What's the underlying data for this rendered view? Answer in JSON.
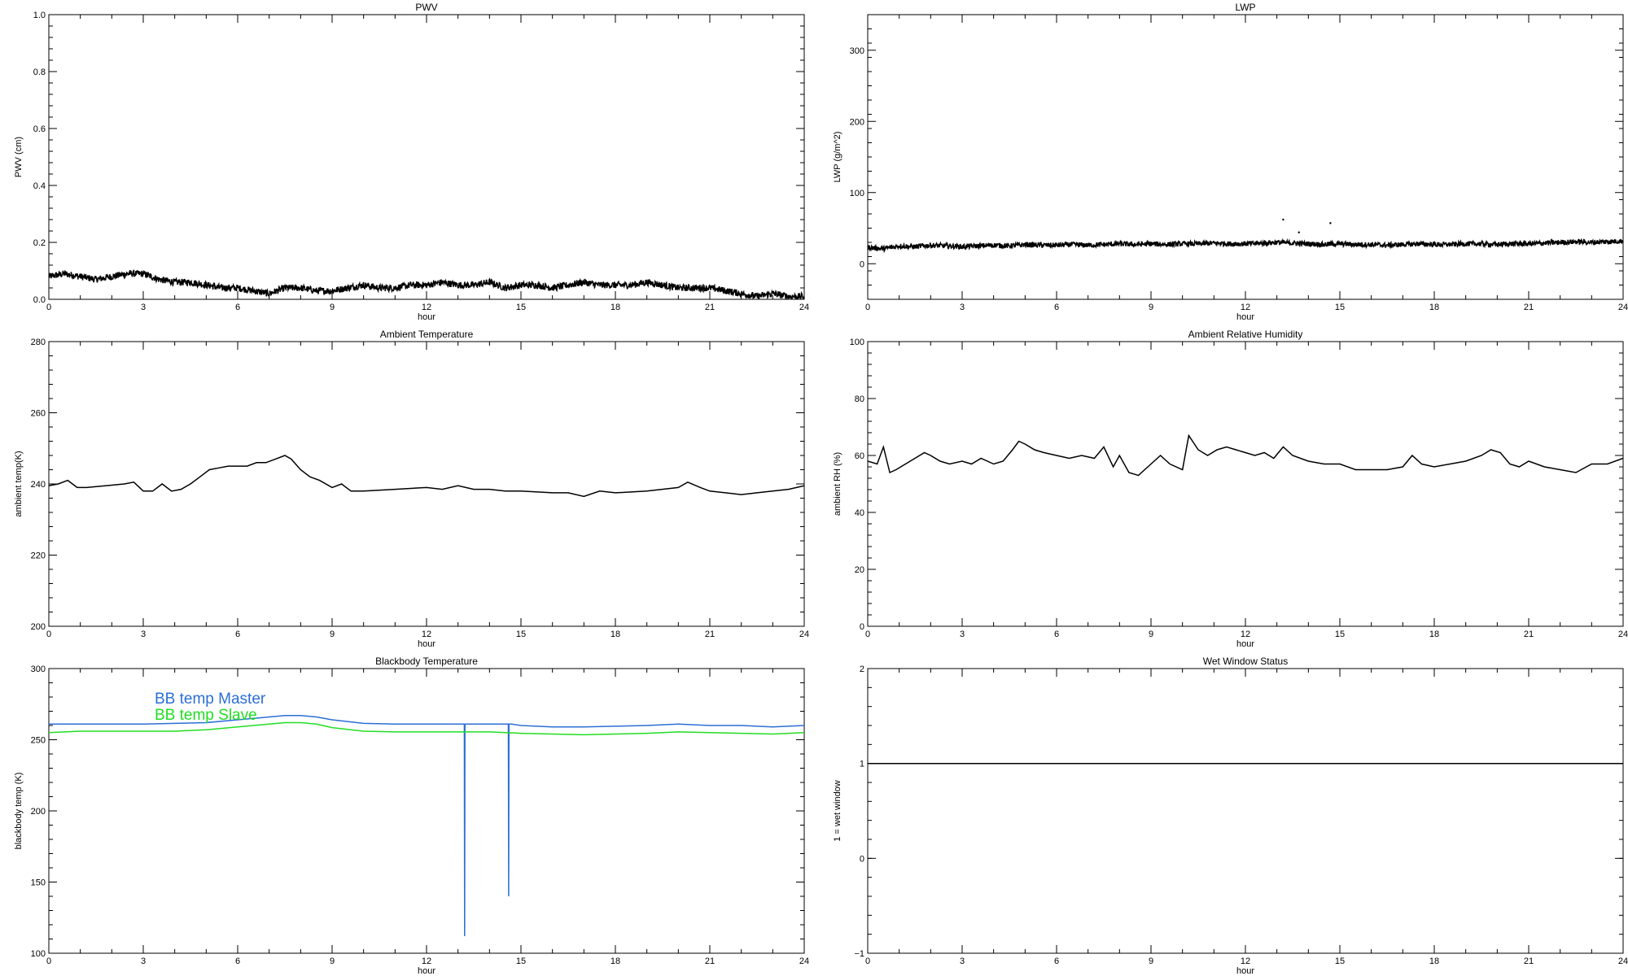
{
  "chart_data": [
    {
      "id": "pwv",
      "type": "line",
      "title": "PWV",
      "xlabel": "hour",
      "ylabel": "PWV (cm)",
      "xlim": [
        0,
        24
      ],
      "ylim": [
        0.0,
        1.0
      ],
      "x_ticks": [
        "0",
        "3",
        "6",
        "9",
        "12",
        "15",
        "18",
        "21",
        "24"
      ],
      "y_ticks": [
        {
          "value": 0.0,
          "label": "0.0"
        },
        {
          "value": 0.2,
          "label": "0.2"
        },
        {
          "value": 0.4,
          "label": "0.4"
        },
        {
          "value": 0.6,
          "label": "0.6"
        },
        {
          "value": 0.8,
          "label": "0.8"
        },
        {
          "value": 1.0,
          "label": "1.0"
        }
      ],
      "series": [
        {
          "color": "#000000",
          "style": "noisy",
          "x": [
            0,
            0.5,
            1,
            1.5,
            2,
            2.5,
            3,
            3.5,
            4,
            4.5,
            5,
            5.5,
            6,
            6.5,
            7,
            7.5,
            8,
            8.5,
            9,
            9.5,
            10,
            10.5,
            11,
            11.5,
            12,
            12.5,
            13,
            13.5,
            14,
            14.5,
            15,
            15.5,
            16,
            16.5,
            17,
            17.5,
            18,
            18.5,
            19,
            19.5,
            20,
            20.5,
            21,
            21.5,
            22,
            22.5,
            23,
            23.5,
            24
          ],
          "y": [
            0.08,
            0.09,
            0.08,
            0.07,
            0.08,
            0.09,
            0.09,
            0.07,
            0.06,
            0.06,
            0.05,
            0.04,
            0.04,
            0.03,
            0.02,
            0.04,
            0.04,
            0.03,
            0.03,
            0.04,
            0.05,
            0.04,
            0.04,
            0.05,
            0.05,
            0.06,
            0.05,
            0.05,
            0.06,
            0.04,
            0.05,
            0.05,
            0.04,
            0.05,
            0.06,
            0.05,
            0.05,
            0.05,
            0.06,
            0.05,
            0.04,
            0.04,
            0.04,
            0.03,
            0.02,
            0.01,
            0.02,
            0.01,
            0.01
          ]
        }
      ]
    },
    {
      "id": "lwp",
      "type": "line",
      "title": "LWP",
      "xlabel": "hour",
      "ylabel": "LWP (g/m^2)",
      "xlim": [
        0,
        24
      ],
      "ylim": [
        -50,
        350
      ],
      "x_ticks": [
        "0",
        "3",
        "6",
        "9",
        "12",
        "15",
        "18",
        "21",
        "24"
      ],
      "y_ticks": [
        {
          "value": 0,
          "label": "0"
        },
        {
          "value": 100,
          "label": "100"
        },
        {
          "value": 200,
          "label": "200"
        },
        {
          "value": 300,
          "label": "300"
        }
      ],
      "series": [
        {
          "color": "#000000",
          "style": "noisy",
          "x": [
            0,
            0.5,
            1,
            1.5,
            2,
            2.5,
            3,
            3.5,
            4,
            4.5,
            5,
            5.5,
            6,
            6.5,
            7,
            7.5,
            8,
            8.5,
            9,
            9.5,
            10,
            10.5,
            11,
            11.5,
            12,
            12.5,
            13,
            13.5,
            14,
            14.5,
            15,
            15.5,
            16,
            16.5,
            17,
            17.5,
            18,
            18.5,
            19,
            19.5,
            20,
            20.5,
            21,
            21.5,
            22,
            22.5,
            23,
            23.5,
            24
          ],
          "y": [
            23,
            21,
            25,
            24,
            26,
            25,
            24,
            25,
            26,
            25,
            27,
            26,
            26,
            27,
            26,
            27,
            28,
            27,
            28,
            27,
            28,
            28,
            29,
            28,
            28,
            29,
            30,
            29,
            28,
            27,
            28,
            27,
            27,
            26,
            27,
            28,
            27,
            27,
            28,
            28,
            27,
            28,
            28,
            29,
            30,
            31,
            30,
            31,
            32
          ]
        }
      ],
      "outliers": [
        {
          "x": 13.2,
          "y": 62
        },
        {
          "x": 13.7,
          "y": 44
        },
        {
          "x": 14.7,
          "y": 57
        }
      ]
    },
    {
      "id": "ambient_temp",
      "type": "line",
      "title": "Ambient Temperature",
      "xlabel": "hour",
      "ylabel": "ambient temp(K)",
      "xlim": [
        0,
        24
      ],
      "ylim": [
        200,
        280
      ],
      "x_ticks": [
        "0",
        "3",
        "6",
        "9",
        "12",
        "15",
        "18",
        "21",
        "24"
      ],
      "y_ticks": [
        {
          "value": 200,
          "label": "200"
        },
        {
          "value": 220,
          "label": "220"
        },
        {
          "value": 240,
          "label": "240"
        },
        {
          "value": 260,
          "label": "260"
        },
        {
          "value": 280,
          "label": "280"
        }
      ],
      "series": [
        {
          "color": "#000000",
          "style": "solid",
          "x": [
            0,
            0.3,
            0.6,
            0.9,
            1.2,
            1.8,
            2.4,
            2.7,
            3.0,
            3.3,
            3.6,
            3.9,
            4.2,
            4.5,
            4.8,
            5.1,
            5.4,
            5.7,
            6.0,
            6.3,
            6.6,
            6.9,
            7.2,
            7.5,
            7.7,
            8.0,
            8.3,
            8.6,
            9.0,
            9.3,
            9.6,
            10,
            11,
            12,
            12.5,
            13,
            13.5,
            14,
            14.5,
            15,
            16,
            16.5,
            17,
            17.5,
            18,
            19,
            20,
            20.3,
            20.7,
            21,
            21.5,
            22,
            22.5,
            23,
            23.5,
            24
          ],
          "y": [
            239.5,
            240,
            241,
            239,
            239,
            239.5,
            240,
            240.5,
            238,
            238,
            240,
            238,
            238.5,
            240,
            242,
            244,
            244.5,
            245,
            245,
            245,
            246,
            246,
            247,
            248,
            247,
            244,
            242,
            241,
            239,
            240,
            238,
            238,
            238.5,
            239,
            238.5,
            239.5,
            238.5,
            238.5,
            238,
            238,
            237.5,
            237.5,
            236.5,
            238,
            237.5,
            238,
            239,
            240.5,
            239,
            238,
            237.5,
            237,
            237.5,
            238,
            238.5,
            239.5
          ]
        }
      ]
    },
    {
      "id": "ambient_rh",
      "type": "line",
      "title": "Ambient Relative Humidity",
      "xlabel": "hour",
      "ylabel": "ambient RH (%)",
      "xlim": [
        0,
        24
      ],
      "ylim": [
        0,
        100
      ],
      "x_ticks": [
        "0",
        "3",
        "6",
        "9",
        "12",
        "15",
        "18",
        "21",
        "24"
      ],
      "y_ticks": [
        {
          "value": 0,
          "label": "0"
        },
        {
          "value": 20,
          "label": "20"
        },
        {
          "value": 40,
          "label": "40"
        },
        {
          "value": 60,
          "label": "60"
        },
        {
          "value": 80,
          "label": "80"
        },
        {
          "value": 100,
          "label": "100"
        }
      ],
      "series": [
        {
          "color": "#000000",
          "style": "solid",
          "x": [
            0,
            0.3,
            0.5,
            0.7,
            0.9,
            1.2,
            1.5,
            1.8,
            2.0,
            2.3,
            2.6,
            3.0,
            3.3,
            3.6,
            4.0,
            4.3,
            4.6,
            4.8,
            5.0,
            5.3,
            5.6,
            6.0,
            6.4,
            6.8,
            7.2,
            7.5,
            7.8,
            8.0,
            8.3,
            8.6,
            9.0,
            9.3,
            9.6,
            10.0,
            10.2,
            10.5,
            10.8,
            11.1,
            11.4,
            11.7,
            12.0,
            12.3,
            12.6,
            12.9,
            13.2,
            13.5,
            14.0,
            14.5,
            15.0,
            15.5,
            16.0,
            16.5,
            17.0,
            17.3,
            17.6,
            18.0,
            18.5,
            19.0,
            19.5,
            19.8,
            20.1,
            20.4,
            20.7,
            21.0,
            21.5,
            22.0,
            22.5,
            23.0,
            23.5,
            24.0
          ],
          "y": [
            58,
            57,
            63,
            54,
            55,
            57,
            59,
            61,
            60,
            58,
            57,
            58,
            57,
            59,
            57,
            58,
            62,
            65,
            64,
            62,
            61,
            60,
            59,
            60,
            59,
            63,
            56,
            60,
            54,
            53,
            57,
            60,
            57,
            55,
            67,
            62,
            60,
            62,
            63,
            62,
            61,
            60,
            61,
            59,
            63,
            60,
            58,
            57,
            57,
            55,
            55,
            55,
            56,
            60,
            57,
            56,
            57,
            58,
            60,
            62,
            61,
            57,
            56,
            58,
            56,
            55,
            54,
            57,
            57,
            59
          ]
        }
      ]
    },
    {
      "id": "blackbody_temp",
      "type": "line",
      "title": "Blackbody Temperature",
      "xlabel": "hour",
      "ylabel": "blackbody temp (K)",
      "xlim": [
        0,
        24
      ],
      "ylim": [
        100,
        300
      ],
      "x_ticks": [
        "0",
        "3",
        "6",
        "9",
        "12",
        "15",
        "18",
        "21",
        "24"
      ],
      "y_ticks": [
        {
          "value": 100,
          "label": "100"
        },
        {
          "value": 150,
          "label": "150"
        },
        {
          "value": 200,
          "label": "200"
        },
        {
          "value": 250,
          "label": "250"
        },
        {
          "value": 300,
          "label": "300"
        }
      ],
      "legend_placement": "top-left",
      "series": [
        {
          "name": "BB temp Master",
          "color": "#2b6fd6",
          "style": "solid",
          "x": [
            0,
            1,
            2,
            3,
            4,
            5,
            6,
            7,
            7.5,
            8,
            8.5,
            9,
            10,
            11,
            12,
            13,
            13.2,
            13.21,
            13.22,
            13.3,
            14,
            14.6,
            14.61,
            14.62,
            14.7,
            15,
            16,
            17,
            18,
            19,
            20,
            21,
            22,
            23,
            24
          ],
          "y": [
            261,
            261,
            261,
            261,
            261.5,
            262,
            264,
            266,
            267,
            267,
            266,
            264,
            261.5,
            261,
            261,
            261,
            261,
            112,
            261,
            261,
            261,
            261,
            140,
            261,
            261,
            260,
            259,
            259,
            259.5,
            260,
            261,
            260,
            260,
            259,
            260
          ]
        },
        {
          "name": "BB temp Slave",
          "color": "#22dd22",
          "style": "solid",
          "x": [
            0,
            1,
            2,
            3,
            4,
            5,
            6,
            7,
            7.5,
            8,
            8.5,
            9,
            10,
            11,
            12,
            13,
            14,
            15,
            16,
            17,
            18,
            19,
            20,
            21,
            22,
            23,
            24
          ],
          "y": [
            255,
            256,
            256,
            256,
            256,
            257,
            259,
            261,
            262,
            262,
            261,
            258.5,
            256,
            255.5,
            255.5,
            255.5,
            255.5,
            254.5,
            254,
            253.5,
            254,
            254.5,
            255.5,
            255,
            254.5,
            254,
            255
          ]
        }
      ]
    },
    {
      "id": "wet_window",
      "type": "line",
      "title": "Wet Window Status",
      "xlabel": "hour",
      "ylabel": "1 = wet window",
      "xlim": [
        0,
        24
      ],
      "ylim": [
        -1,
        2
      ],
      "x_ticks": [
        "0",
        "3",
        "6",
        "9",
        "12",
        "15",
        "18",
        "21",
        "24"
      ],
      "y_ticks": [
        {
          "value": -1,
          "label": "−1"
        },
        {
          "value": 0,
          "label": "0"
        },
        {
          "value": 1,
          "label": "1"
        },
        {
          "value": 2,
          "label": "2"
        }
      ],
      "series": [
        {
          "color": "#000000",
          "style": "solid",
          "x": [
            0,
            24
          ],
          "y": [
            1,
            1
          ]
        }
      ]
    }
  ]
}
